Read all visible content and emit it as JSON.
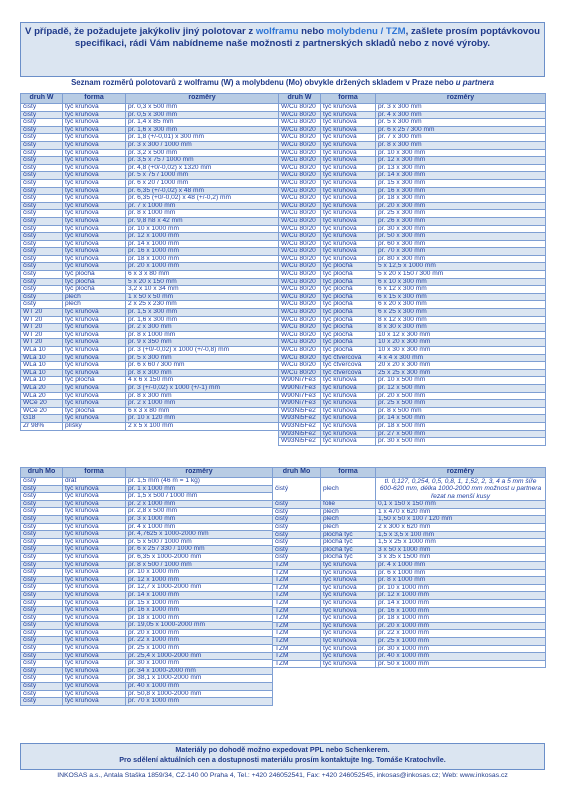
{
  "header": {
    "parts": [
      "V případě, že požadujete jakýkoliv jiný polotovar z ",
      "wolframu",
      " nebo ",
      "molybdenu / TZM",
      ", zašlete prosím poptávkovou specifikaci, rádi Vám nabídneme naše možnosti z partnerských skladů nebo z nové výroby."
    ]
  },
  "subtitle": {
    "parts": [
      "Seznam rozměrů polotovarů z wolframu (W) a molybdenu (Mo) obvykle držených skladem v Praze nebo ",
      "u partnera"
    ]
  },
  "tables": [
    {
      "headers": [
        "druh W",
        "forma",
        "rozměry",
        "druh W",
        "forma",
        "rozměry"
      ],
      "left": [
        [
          "čistý",
          "tyč kruhová",
          "pr. 0,3 x 500 mm"
        ],
        [
          "čistý",
          "tyč kruhová",
          "pr. 0,5 x 300 mm"
        ],
        [
          "čistý",
          "tyč kruhová",
          "pr. 1,4 x 85 mm"
        ],
        [
          "čistý",
          "tyč kruhová",
          "pr. 1,6 x 300 mm"
        ],
        [
          "čistý",
          "tyč kruhová",
          "pr. 1,8 (+/-0,01) x 300 mm"
        ],
        [
          "čistý",
          "tyč kruhová",
          "pr. 3 x 300 / 1000 mm"
        ],
        [
          "čistý",
          "tyč kruhová",
          "pr. 3,2 x 500 mm"
        ],
        [
          "čistý",
          "tyč kruhová",
          "pr. 3,5 x 75 / 1000 mm"
        ],
        [
          "čistý",
          "tyč kruhová",
          "pr. 4,8 (+0/-0,02) x 1320 mm"
        ],
        [
          "čistý",
          "tyč kruhová",
          "pr. 5 x 75 / 1000 mm"
        ],
        [
          "čistý",
          "tyč kruhová",
          "pr. 6 x 20 / 1000 mm"
        ],
        [
          "čistý",
          "tyč kruhová",
          "pr. 6,35 (+/-0,02) x 48 mm"
        ],
        [
          "čistý",
          "tyč kruhová",
          "pr. 6,35 (+0/-0,02) x 48 (+/-0,2) mm"
        ],
        [
          "čistý",
          "tyč kruhová",
          "pr. 7 x 1000 mm"
        ],
        [
          "čistý",
          "tyč kruhová",
          "pr. 8 x 1000 mm"
        ],
        [
          "čistý",
          "tyč kruhová",
          "pr. 9,8 h8 x 42 mm"
        ],
        [
          "čistý",
          "tyč kruhová",
          "pr. 10 x 1000 mm"
        ],
        [
          "čistý",
          "tyč kruhová",
          "pr. 12 x 1000 mm"
        ],
        [
          "čistý",
          "tyč kruhová",
          "pr. 14 x 1000 mm"
        ],
        [
          "čistý",
          "tyč kruhová",
          "pr. 16 x 1000 mm"
        ],
        [
          "čistý",
          "tyč kruhová",
          "pr. 18 x 1000 mm"
        ],
        [
          "čistý",
          "tyč kruhová",
          "pr. 20 x 1000 mm"
        ],
        [
          "čistý",
          "tyč plochá",
          "6 x 3 x 80 mm"
        ],
        [
          "čistý",
          "tyč plochá",
          "5 x 20 x 150 mm"
        ],
        [
          "čistý",
          "tyč plochá",
          "3,2 x 10 x 34 mm"
        ],
        [
          "čistý",
          "plech",
          "1 x 50 x 50 mm"
        ],
        [
          "čistý",
          "plech",
          "2 x 25 x 230 mm"
        ],
        [
          "WT 20",
          "tyč kruhová",
          "pr. 1,5 x 300 mm"
        ],
        [
          "WT 20",
          "tyč kruhová",
          "pr. 1,6 x 300 mm"
        ],
        [
          "WT 20",
          "tyč kruhová",
          "pr. 2 x 300 mm"
        ],
        [
          "WT 20",
          "tyč kruhová",
          "pr. 8 x 1000 mm"
        ],
        [
          "WT 20",
          "tyč kruhová",
          "pr. 9 x 350 mm"
        ],
        [
          "WLa 10",
          "tyč kruhová",
          "pr. 3 (+0/-0,02) x 1000 (+/-0,8) mm"
        ],
        [
          "WLa 10",
          "tyč kruhová",
          "pr. 5 x 300 mm"
        ],
        [
          "WLa 10",
          "tyč kruhová",
          "pr. 6 x 60 / 300 mm"
        ],
        [
          "WLa 10",
          "tyč kruhová",
          "pr. 8 x 300 mm"
        ],
        [
          "WLa 10",
          "tyč plochá",
          "4 x 6 x 150 mm"
        ],
        [
          "WLa 20",
          "tyč kruhová",
          "pr. 3 (+/-0,02) x 1000 (+/-1) mm"
        ],
        [
          "WLa 20",
          "tyč kruhová",
          "pr. 8 x 300 mm"
        ],
        [
          "WCe 20",
          "tyč kruhová",
          "pr. 2 x 1000 mm"
        ],
        [
          "WCe 20",
          "tyč plochá",
          "6 x 3 x 80 mm"
        ],
        [
          "G18",
          "tyč kruhová",
          "pr. 10 x 120 mm"
        ],
        [
          "Zr 98%",
          "plíšky",
          "2 x 5 x 100 mm"
        ]
      ],
      "right": [
        [
          "W/Cu 80/20",
          "tyč kruhová",
          "pr. 3 x 300 mm"
        ],
        [
          "W/Cu 80/20",
          "tyč kruhová",
          "pr. 4 x 300 mm"
        ],
        [
          "W/Cu 80/20",
          "tyč kruhová",
          "pr. 5 x 300 mm"
        ],
        [
          "W/Cu 80/20",
          "tyč kruhová",
          "pr. 6 x 25 / 300 mm"
        ],
        [
          "W/Cu 80/20",
          "tyč kruhová",
          "pr. 7 x 300 mm"
        ],
        [
          "W/Cu 80/20",
          "tyč kruhová",
          "pr. 8 x 300 mm"
        ],
        [
          "W/Cu 80/20",
          "tyč kruhová",
          "pr. 10 x 300 mm"
        ],
        [
          "W/Cu 80/20",
          "tyč kruhová",
          "pr. 12 x 300 mm"
        ],
        [
          "W/Cu 80/20",
          "tyč kruhová",
          "pr. 13 x 300 mm"
        ],
        [
          "W/Cu 80/20",
          "tyč kruhová",
          "pr. 14 x 300 mm"
        ],
        [
          "W/Cu 80/20",
          "tyč kruhová",
          "pr. 15 x 300 mm"
        ],
        [
          "W/Cu 80/20",
          "tyč kruhová",
          "pr. 16 x 300 mm"
        ],
        [
          "W/Cu 80/20",
          "tyč kruhová",
          "pr. 18 x 300 mm"
        ],
        [
          "W/Cu 80/20",
          "tyč kruhová",
          "pr. 20 x 300 mm"
        ],
        [
          "W/Cu 80/20",
          "tyč kruhová",
          "pr. 25 x 300 mm"
        ],
        [
          "W/Cu 80/20",
          "tyč kruhová",
          "pr. 26 x 300 mm"
        ],
        [
          "W/Cu 80/20",
          "tyč kruhová",
          "pr. 30 x 300 mm"
        ],
        [
          "W/Cu 80/20",
          "tyč kruhová",
          "pr. 50 x 300 mm"
        ],
        [
          "W/Cu 80/20",
          "tyč kruhová",
          "pr. 60 x 300 mm"
        ],
        [
          "W/Cu 80/20",
          "tyč kruhová",
          "pr. 70 x 300 mm"
        ],
        [
          "W/Cu 80/20",
          "tyč kruhová",
          "pr. 80 x 300 mm"
        ],
        [
          "W/Cu 80/20",
          "tyč plochá",
          "5 x 12,5 x 1000 mm"
        ],
        [
          "W/Cu 80/20",
          "tyč plochá",
          "5 x 20 x 150 / 300 mm"
        ],
        [
          "W/Cu 80/20",
          "tyč plochá",
          "6 x 10 x 300 mm"
        ],
        [
          "W/Cu 80/20",
          "tyč plochá",
          "6 x 12 x 300 mm"
        ],
        [
          "W/Cu 80/20",
          "tyč plochá",
          "6 x 15 x 300 mm"
        ],
        [
          "W/Cu 80/20",
          "tyč plochá",
          "6 x 20 x 300 mm"
        ],
        [
          "W/Cu 80/20",
          "tyč plochá",
          "6 x 25 x 300 mm"
        ],
        [
          "W/Cu 80/20",
          "tyč plochá",
          "8 x 12 x 300 mm"
        ],
        [
          "W/Cu 80/20",
          "tyč plochá",
          "8 x 30 x 300 mm"
        ],
        [
          "W/Cu 80/20",
          "tyč plochá",
          "10 x 12 x 300 mm"
        ],
        [
          "W/Cu 80/20",
          "tyč plochá",
          "10 x 20 x 300 mm"
        ],
        [
          "W/Cu 80/20",
          "tyč plochá",
          "10 x 30 x 300 mm"
        ],
        [
          "W/Cu 80/20",
          "tyč čtvercová",
          "4 x 4 x 300 mm"
        ],
        [
          "W/Cu 80/20",
          "tyč čtvercová",
          "20 x 20 x 300 mm"
        ],
        [
          "W/Cu 80/20",
          "tyč čtvercová",
          "25 x 25 x 300 mm"
        ],
        [
          "W90Ni7Fe3",
          "tyč kruhová",
          "pr. 10 x 500 mm"
        ],
        [
          "W90Ni7Fe3",
          "tyč kruhová",
          "pr. 12 x 500 mm"
        ],
        [
          "W90Ni7Fe3",
          "tyč kruhová",
          "pr. 20 x 500 mm"
        ],
        [
          "W90Ni7Fe3",
          "tyč kruhová",
          "pr. 25 x 500 mm"
        ],
        [
          "W93Ni5Fe2",
          "tyč kruhová",
          "pr. 8 x 500 mm"
        ],
        [
          "W93Ni5Fe2",
          "tyč kruhová",
          "pr. 14 x 500 mm"
        ],
        [
          "W93Ni5Fe2",
          "tyč kruhová",
          "pr. 18 x 500 mm"
        ],
        [
          "W93Ni5Fe2",
          "tyč kruhová",
          "pr. 27 x 500 mm"
        ],
        [
          "W93Ni5Fe2",
          "tyč kruhová",
          "pr. 30 x 500 mm"
        ]
      ]
    },
    {
      "headers": [
        "druh Mo",
        "forma",
        "rozměry",
        "druh Mo",
        "forma",
        "rozměry"
      ],
      "left": [
        [
          "čistý",
          "drát",
          "pr. 1,5 mm (46 m = 1 kg)"
        ],
        [
          "čistý",
          "tyč kruhová",
          "pr. 1 x 1000 mm"
        ],
        [
          "čistý",
          "tyč kruhová",
          "pr. 1,5 x 500 / 1000 mm"
        ],
        [
          "čistý",
          "tyč kruhová",
          "pr. 2 x 1000 mm"
        ],
        [
          "čistý",
          "tyč kruhová",
          "pr. 2,8 x 500 mm"
        ],
        [
          "čistý",
          "tyč kruhová",
          "pr. 3 x 1000 mm"
        ],
        [
          "čistý",
          "tyč kruhová",
          "pr. 4 x 1000 mm"
        ],
        [
          "čistý",
          "tyč kruhová",
          "pr. 4,7625 x 1000-2000 mm"
        ],
        [
          "čistý",
          "tyč kruhová",
          "pr. 5 x 500 / 1000 mm"
        ],
        [
          "čistý",
          "tyč kruhová",
          "pr. 6 x 25 / 330 / 1000 mm"
        ],
        [
          "čistý",
          "tyč kruhová",
          "pr. 6,35 x 1000-2000 mm"
        ],
        [
          "čistý",
          "tyč kruhová",
          "pr. 8 x 500 / 1000 mm"
        ],
        [
          "čistý",
          "tyč kruhová",
          "pr. 10 x 1000 mm"
        ],
        [
          "čistý",
          "tyč kruhová",
          "pr. 12 x 1000 mm"
        ],
        [
          "čistý",
          "tyč kruhová",
          "pr. 12,7 x 1000-2000 mm"
        ],
        [
          "čistý",
          "tyč kruhová",
          "pr. 14 x 1000 mm"
        ],
        [
          "čistý",
          "tyč kruhová",
          "pr. 15 x 1000 mm"
        ],
        [
          "čistý",
          "tyč kruhová",
          "pr. 16 x 1000 mm"
        ],
        [
          "čistý",
          "tyč kruhová",
          "pr. 18 x 1000 mm"
        ],
        [
          "čistý",
          "tyč kruhová",
          "pr. 19,05 x 1000-2000 mm"
        ],
        [
          "čistý",
          "tyč kruhová",
          "pr. 20 x 1000 mm"
        ],
        [
          "čistý",
          "tyč kruhová",
          "pr. 22 x 1000 mm"
        ],
        [
          "čistý",
          "tyč kruhová",
          "pr. 25 x 1000 mm"
        ],
        [
          "čistý",
          "tyč kruhová",
          "pr. 25,4 x 1000-2000 mm"
        ],
        [
          "čistý",
          "tyč kruhová",
          "pr. 30 x 1000 mm"
        ],
        [
          "čistý",
          "tyč kruhová",
          "pr. 34 x 1000-2000 mm"
        ],
        [
          "čistý",
          "tyč kruhová",
          "pr. 38,1 x 1000-2000 mm"
        ],
        [
          "čistý",
          "tyč kruhová",
          "pr. 40 x 1000 mm"
        ],
        [
          "čistý",
          "tyč kruhová",
          "pr. 50,8 x 1000-2000 mm"
        ],
        [
          "čistý",
          "tyč kruhová",
          "pr. 70 x 1000 mm"
        ]
      ],
      "right": [
        [
          "čistý",
          "plech",
          "tl. 0,127, 0,254, 0,5, 0,8, 1, 1,52, 2, 3, 4 a 5 mm šíře 600-620 mm, délka 1000-2000 mm možnost u partnera řezat na menší kusy"
        ],
        [
          "čistý",
          "folie",
          "0,1 x 150 x 150 mm"
        ],
        [
          "čistý",
          "plech",
          "1 x 470 x 620 mm"
        ],
        [
          "čistý",
          "plech",
          "1,50 x 50 x 100 / 120 mm"
        ],
        [
          "čistý",
          "plech",
          "2 x 300 x 620 mm"
        ],
        [
          "čistý",
          "plochá tyč",
          "1,5 x 3,5 x 100 mm"
        ],
        [
          "čistý",
          "plochá tyč",
          "1,5 x 25 x 1000 mm"
        ],
        [
          "čistý",
          "plochá tyč",
          "3 x 50 x 1000 mm"
        ],
        [
          "čistý",
          "plochá tyč",
          "3 x 35 x 1500 mm"
        ],
        [
          "TZM",
          "tyč kruhová",
          "pr. 4 x 1000 mm"
        ],
        [
          "TZM",
          "tyč kruhová",
          "pr. 6 x 1000 mm"
        ],
        [
          "TZM",
          "tyč kruhová",
          "pr. 8 x 1000 mm"
        ],
        [
          "TZM",
          "tyč kruhová",
          "pr. 10 x 1000 mm"
        ],
        [
          "TZM",
          "tyč kruhová",
          "pr. 12 x 1000 mm"
        ],
        [
          "TZM",
          "tyč kruhová",
          "pr. 14 x 1000 mm"
        ],
        [
          "TZM",
          "tyč kruhová",
          "pr. 16 x 1000 mm"
        ],
        [
          "TZM",
          "tyč kruhová",
          "pr. 18 x 1000 mm"
        ],
        [
          "TZM",
          "tyč kruhová",
          "pr. 20 x 1000 mm"
        ],
        [
          "TZM",
          "tyč kruhová",
          "pr. 22 x 1000 mm"
        ],
        [
          "TZM",
          "tyč kruhová",
          "pr. 25 x 1000 mm"
        ],
        [
          "TZM",
          "tyč kruhová",
          "pr. 30 x 1000 mm"
        ],
        [
          "TZM",
          "tyč kruhová",
          "pr. 40 x 1000 mm"
        ],
        [
          "TZM",
          "tyč kruhová",
          "pr. 50 x 1000 mm"
        ]
      ]
    }
  ],
  "footer_note": {
    "lines": [
      "Materiály po dohodě možno expedovat PPL nebo Schenkerem.",
      "Pro sdělení aktuálních cen a dostupnosti materiálu prosím kontaktujte Ing. Tomáše Kratochvíle."
    ]
  },
  "contact": "INKOSAS a.s., Antala Staška 1859/34, CZ-140 00 Praha 4, Tel.: +420 246052541, Fax: +420 246052545, inkosas@inkosas.cz; Web: www.inkosas.cz"
}
